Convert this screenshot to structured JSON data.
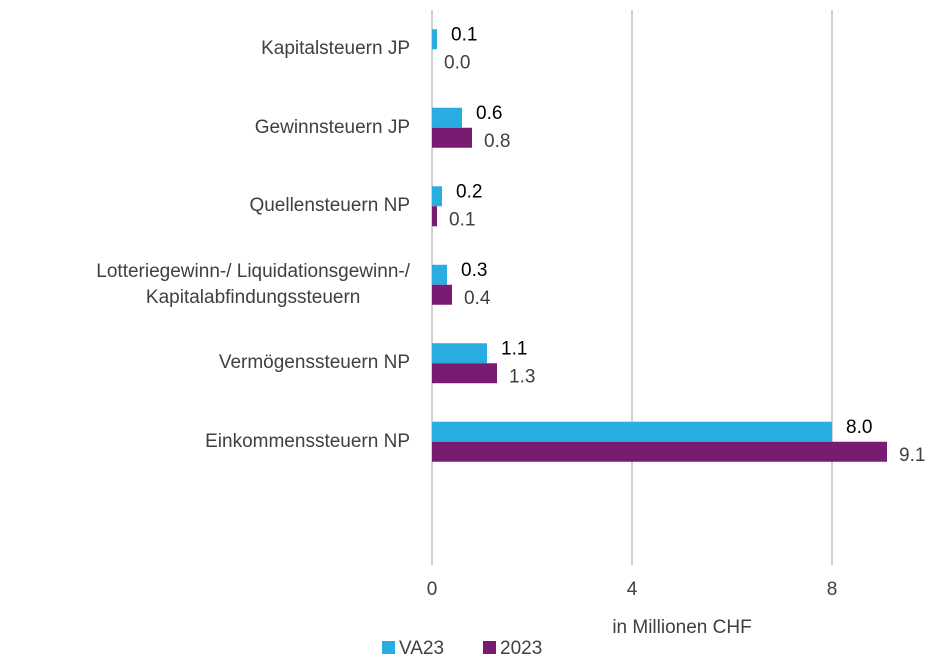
{
  "chart_data": {
    "type": "bar",
    "orientation": "horizontal",
    "categories": [
      "Kapitalsteuern JP",
      "Gewinnsteuern JP",
      "Quellensteuern NP",
      "Lotteriegewinn-/ Liquidationsgewinn-/\nKapitalabfindungssteuern",
      "Vermögenssteuern NP",
      "Einkommenssteuern NP"
    ],
    "series": [
      {
        "name": "VA23",
        "color": "#29ade0",
        "values": [
          0.1,
          0.6,
          0.2,
          0.3,
          1.1,
          8.0
        ],
        "value_labels": [
          "0.1",
          "0.6",
          "0.2",
          "0.3",
          "1.1",
          "8.0"
        ]
      },
      {
        "name": "2023",
        "color": "#7a1b72",
        "values": [
          0.0,
          0.8,
          0.1,
          0.4,
          1.3,
          9.1
        ],
        "value_labels": [
          "0.0",
          "0.8",
          "0.1",
          "0.4",
          "1.3",
          "9.1"
        ]
      }
    ],
    "xlabel": "in Millionen CHF",
    "xlim": [
      0,
      10
    ],
    "xticks": [
      0,
      4,
      8
    ],
    "grid": true,
    "legend": "bottom"
  }
}
